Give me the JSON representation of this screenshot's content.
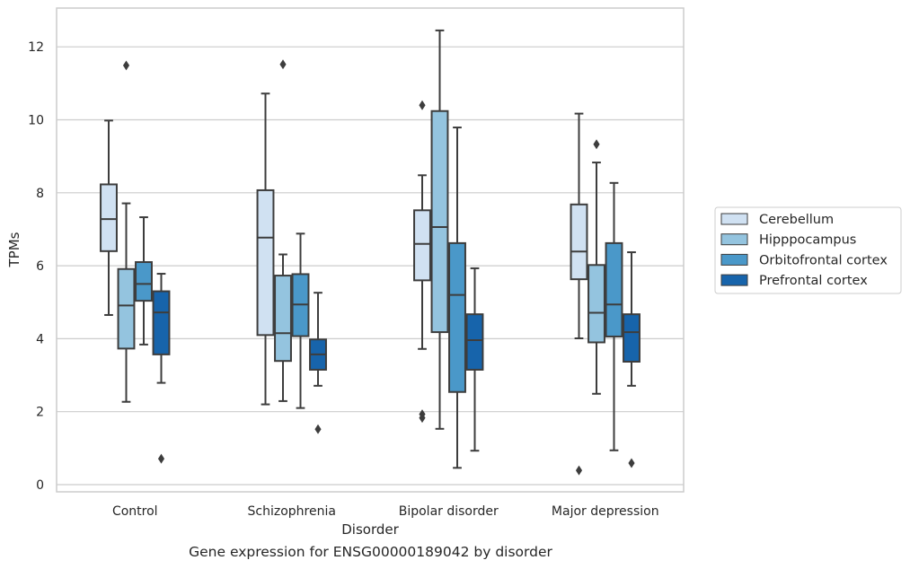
{
  "caption": "Gene expression for ENSG00000189042 by disorder",
  "chart_data": {
    "type": "box",
    "xlabel": "Disorder",
    "ylabel": "TPMs",
    "ylim": [
      -0.2,
      13.0
    ],
    "yticks": [
      0,
      2,
      4,
      6,
      8,
      10,
      12
    ],
    "grid": "horizontal",
    "legend_position": "right",
    "categories": [
      "Control",
      "Schizophrenia",
      "Bipolar disorder",
      "Major depression"
    ],
    "series": [
      {
        "name": "Cerebellum",
        "color": "#d0e1f2",
        "boxes": [
          {
            "min": 4.65,
            "q1": 6.4,
            "median": 7.28,
            "q3": 8.23,
            "max": 9.98,
            "outliers": []
          },
          {
            "min": 2.2,
            "q1": 4.1,
            "median": 6.77,
            "q3": 8.07,
            "max": 10.72,
            "outliers": []
          },
          {
            "min": 3.72,
            "q1": 5.6,
            "median": 6.6,
            "q3": 7.52,
            "max": 8.48,
            "outliers": [
              10.4,
              1.93,
              1.83
            ]
          },
          {
            "min": 4.01,
            "q1": 5.63,
            "median": 6.39,
            "q3": 7.68,
            "max": 10.17,
            "outliers": [
              0.39
            ]
          }
        ]
      },
      {
        "name": "Hipppocampus",
        "color": "#94c4df",
        "boxes": [
          {
            "min": 2.27,
            "q1": 3.73,
            "median": 4.91,
            "q3": 5.91,
            "max": 7.71,
            "outliers": [
              11.49
            ]
          },
          {
            "min": 2.29,
            "q1": 3.39,
            "median": 4.15,
            "q3": 5.73,
            "max": 6.31,
            "outliers": [
              11.52
            ]
          },
          {
            "min": 1.53,
            "q1": 4.18,
            "median": 7.06,
            "q3": 10.24,
            "max": 12.45,
            "outliers": []
          },
          {
            "min": 2.49,
            "q1": 3.9,
            "median": 4.71,
            "q3": 6.02,
            "max": 8.83,
            "outliers": [
              9.33
            ]
          }
        ]
      },
      {
        "name": "Orbitofrontal cortex",
        "color": "#4a98c9",
        "boxes": [
          {
            "min": 3.84,
            "q1": 5.04,
            "median": 5.5,
            "q3": 6.1,
            "max": 7.33,
            "outliers": []
          },
          {
            "min": 2.1,
            "q1": 4.07,
            "median": 4.94,
            "q3": 5.77,
            "max": 6.88,
            "outliers": []
          },
          {
            "min": 0.46,
            "q1": 2.54,
            "median": 5.2,
            "q3": 6.62,
            "max": 9.79,
            "outliers": []
          },
          {
            "min": 0.94,
            "q1": 4.06,
            "median": 4.94,
            "q3": 6.62,
            "max": 8.27,
            "outliers": []
          }
        ]
      },
      {
        "name": "Prefrontal cortex",
        "color": "#1764ab",
        "boxes": [
          {
            "min": 2.79,
            "q1": 3.57,
            "median": 4.72,
            "q3": 5.3,
            "max": 5.78,
            "outliers": [
              0.71
            ]
          },
          {
            "min": 2.71,
            "q1": 3.15,
            "median": 3.57,
            "q3": 3.98,
            "max": 5.26,
            "outliers": [
              1.52
            ]
          },
          {
            "min": 0.93,
            "q1": 3.15,
            "median": 3.96,
            "q3": 4.67,
            "max": 5.93,
            "outliers": []
          },
          {
            "min": 2.71,
            "q1": 3.37,
            "median": 4.18,
            "q3": 4.67,
            "max": 6.37,
            "outliers": [
              0.59
            ]
          }
        ]
      }
    ]
  }
}
